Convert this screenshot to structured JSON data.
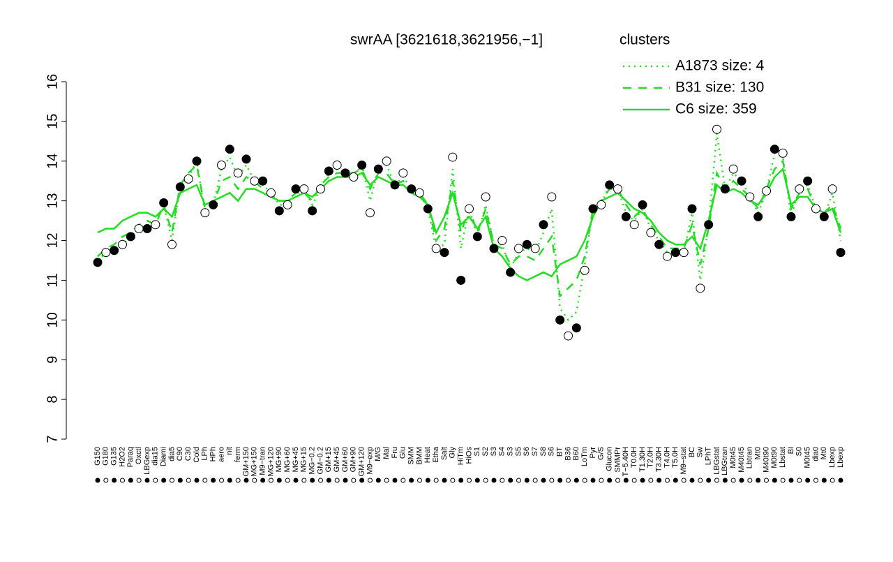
{
  "chart_data": {
    "type": "line",
    "title": "swrAA [3621618,3621956,−1]",
    "legend_title": "clusters",
    "legend_color": "#22dd22",
    "ylim": [
      7,
      16
    ],
    "yticks": [
      7,
      8,
      9,
      10,
      11,
      12,
      13,
      14,
      15,
      16
    ],
    "categories": [
      "G150",
      "G180",
      "G135",
      "H2O2",
      "Paraq",
      "Oxctl",
      "LBGexp",
      "dia15",
      "Diami",
      "dia5",
      "C90",
      "C30",
      "Cold",
      "LPh",
      "HPh",
      "aero",
      "nit",
      "ferm",
      "GM+150",
      "MG+150",
      "M9−tran",
      "MG+120",
      "MG+90",
      "MG+60",
      "MG+45",
      "MG+15",
      "MG−0.2",
      "GM−0.2",
      "GM+15",
      "GM+45",
      "GM+60",
      "GM+90",
      "GM+120",
      "M9−exp",
      "M/G",
      "Mal",
      "Fru",
      "Glu",
      "SMM",
      "BMM",
      "Heat",
      "Etha",
      "Salt",
      "Gly",
      "HiTm",
      "HiOs",
      "S1",
      "S2",
      "S3",
      "S4",
      "S3",
      "S5",
      "S6",
      "S7",
      "S8",
      "S6",
      "BT",
      "B36",
      "B60",
      "LoTm",
      "Pyr",
      "G/S",
      "Glucon",
      "SMMPr",
      "T−5.40H",
      "T0.0H",
      "T1.30H",
      "T2.0H",
      "T3.30H",
      "T4.0H",
      "T5.0H",
      "M9−stat",
      "BC",
      "Sw",
      "LPhT",
      "LBGstat",
      "LBGtran",
      "M0t45",
      "M40t45",
      "Lbtran",
      "Mt0",
      "M40t90",
      "M0t90",
      "Lbstat",
      "BI",
      "S0",
      "M0t45",
      "dia0",
      "Mt0",
      "Lbexp",
      "Lbexp"
    ],
    "values": [
      11.45,
      11.7,
      11.75,
      11.9,
      12.1,
      12.3,
      12.3,
      12.4,
      12.95,
      11.9,
      13.35,
      13.55,
      14.0,
      12.7,
      12.9,
      13.9,
      14.3,
      13.7,
      14.05,
      13.5,
      13.5,
      13.2,
      12.75,
      12.9,
      13.3,
      13.3,
      12.75,
      13.3,
      13.75,
      13.9,
      13.7,
      13.6,
      13.9,
      12.7,
      13.8,
      14.0,
      13.4,
      13.7,
      13.3,
      13.2,
      12.8,
      11.8,
      11.7,
      14.1,
      11.0,
      12.8,
      12.1,
      13.1,
      11.8,
      12.0,
      11.2,
      11.8,
      11.9,
      11.8,
      12.4,
      13.1,
      10.0,
      9.6,
      9.8,
      11.25,
      12.8,
      12.9,
      13.4,
      13.3,
      12.6,
      12.4,
      12.9,
      12.2,
      11.9,
      11.6,
      11.7,
      11.7,
      12.8,
      10.8,
      12.4,
      14.8,
      13.3,
      13.8,
      13.5,
      13.1,
      12.6,
      13.25,
      14.3,
      14.2,
      12.6,
      13.3,
      13.5,
      12.8,
      12.6,
      13.3,
      11.7
    ],
    "series": [
      {
        "name": "A1873 size: 4",
        "color": "#22dd22",
        "dash": "2,6",
        "values": [
          11.5,
          11.7,
          11.8,
          11.9,
          12.1,
          12.3,
          12.3,
          12.4,
          12.9,
          12.0,
          13.4,
          13.6,
          14.0,
          12.7,
          12.9,
          13.8,
          14.1,
          13.6,
          13.9,
          13.5,
          13.4,
          13.2,
          12.9,
          12.9,
          13.3,
          13.3,
          12.9,
          13.3,
          13.7,
          13.8,
          13.7,
          13.6,
          13.9,
          13.0,
          13.8,
          13.9,
          13.4,
          13.6,
          13.3,
          13.2,
          12.8,
          11.8,
          11.9,
          13.8,
          11.8,
          12.8,
          12.1,
          12.9,
          11.9,
          11.9,
          11.3,
          11.7,
          11.8,
          11.7,
          12.2,
          12.8,
          10.3,
          10.0,
          10.2,
          11.4,
          12.8,
          12.9,
          13.4,
          13.3,
          12.7,
          12.5,
          12.8,
          12.3,
          12.0,
          11.7,
          11.7,
          11.7,
          12.7,
          11.0,
          12.4,
          14.7,
          13.3,
          13.7,
          13.5,
          13.1,
          12.7,
          13.2,
          14.2,
          14.1,
          12.6,
          13.3,
          13.4,
          12.8,
          12.6,
          13.2,
          12.0
        ]
      },
      {
        "name": "B31 size: 130",
        "color": "#22dd22",
        "dash": "12,10",
        "values": [
          11.6,
          11.8,
          11.9,
          12.1,
          12.2,
          12.4,
          12.5,
          12.4,
          12.9,
          12.2,
          13.4,
          13.7,
          13.9,
          12.8,
          12.9,
          13.5,
          13.6,
          13.3,
          13.6,
          13.5,
          13.3,
          13.2,
          13.0,
          13.0,
          13.2,
          13.2,
          13.0,
          13.4,
          13.6,
          13.7,
          13.7,
          13.7,
          13.8,
          13.3,
          13.7,
          13.7,
          13.4,
          13.5,
          13.3,
          13.2,
          12.9,
          12.0,
          12.3,
          13.5,
          12.2,
          12.8,
          12.2,
          12.8,
          11.9,
          11.8,
          11.4,
          11.6,
          11.6,
          11.5,
          11.8,
          12.1,
          10.6,
          10.8,
          11.0,
          11.6,
          12.8,
          13.0,
          13.3,
          13.3,
          12.9,
          12.6,
          12.8,
          12.4,
          12.1,
          11.8,
          11.8,
          11.8,
          12.4,
          11.4,
          12.3,
          13.7,
          13.3,
          13.5,
          13.3,
          13.1,
          12.8,
          13.3,
          13.8,
          14.0,
          12.8,
          13.2,
          13.3,
          12.8,
          12.7,
          12.9,
          12.3
        ]
      },
      {
        "name": "C6 size: 359",
        "color": "#22dd22",
        "dash": "",
        "values": [
          12.2,
          12.3,
          12.3,
          12.5,
          12.6,
          12.7,
          12.7,
          12.6,
          12.8,
          12.6,
          13.2,
          13.3,
          13.4,
          12.9,
          13.0,
          13.1,
          13.2,
          13.0,
          13.3,
          13.3,
          13.2,
          13.1,
          13.0,
          13.0,
          13.1,
          13.2,
          13.1,
          13.3,
          13.5,
          13.6,
          13.6,
          13.6,
          13.7,
          13.4,
          13.6,
          13.5,
          13.4,
          13.4,
          13.2,
          13.1,
          12.9,
          12.2,
          12.6,
          13.2,
          12.4,
          12.6,
          12.3,
          12.6,
          11.8,
          11.6,
          11.3,
          11.1,
          11.0,
          11.1,
          11.2,
          11.1,
          11.4,
          11.5,
          11.6,
          12.0,
          12.6,
          13.0,
          13.1,
          13.2,
          13.0,
          12.8,
          12.7,
          12.5,
          12.2,
          12.0,
          11.9,
          11.9,
          12.1,
          11.8,
          12.5,
          13.4,
          13.2,
          13.3,
          13.2,
          13.0,
          12.9,
          13.2,
          13.6,
          13.8,
          12.9,
          13.1,
          13.1,
          12.8,
          12.7,
          12.8,
          12.2
        ]
      }
    ]
  }
}
